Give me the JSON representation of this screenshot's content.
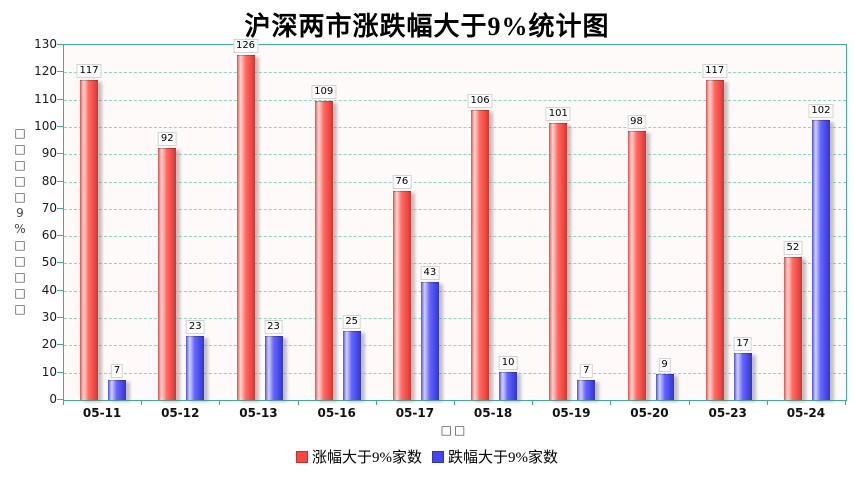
{
  "title": "沪深两市涨跌幅大于9%统计图",
  "chart_data": {
    "type": "bar",
    "title": "沪深两市涨跌幅大于9%统计图",
    "categories": [
      "05-11",
      "05-12",
      "05-13",
      "05-16",
      "05-17",
      "05-18",
      "05-19",
      "05-20",
      "05-23",
      "05-24"
    ],
    "series": [
      {
        "name": "涨幅大于9%家数",
        "color": "#ff4540",
        "values": [
          117,
          92,
          126,
          109,
          76,
          106,
          101,
          98,
          117,
          52
        ]
      },
      {
        "name": "跌幅大于9%家数",
        "color": "#4447f0",
        "values": [
          7,
          23,
          23,
          25,
          43,
          10,
          7,
          9,
          17,
          102
        ]
      }
    ],
    "xlabel": "□□",
    "ylabel": "□□□□□9%□□□□□",
    "ylim": [
      0,
      130
    ],
    "yticks": [
      0,
      10,
      20,
      30,
      40,
      50,
      60,
      70,
      80,
      90,
      100,
      110,
      120,
      130
    ],
    "grid": true,
    "grid_color": "#8fd4bc",
    "axis_color": "#3fae96",
    "plot_background": "#fffafa",
    "legend_position": "bottom",
    "value_labels": true
  }
}
